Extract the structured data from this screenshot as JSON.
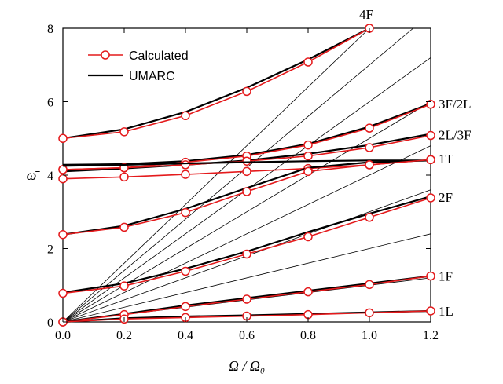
{
  "chart_data": {
    "type": "line",
    "title": "",
    "xlabel": "Ω / Ω₀",
    "ylabel": "ω̄",
    "xlim": [
      0,
      1.2
    ],
    "ylim": [
      0,
      8
    ],
    "xticks": [
      "0.0",
      "0.2",
      "0.4",
      "0.6",
      "0.8",
      "1.0",
      "1.2"
    ],
    "yticks": [
      "0",
      "2",
      "4",
      "6",
      "8"
    ],
    "grid": false,
    "legend_position": "top-left",
    "legend": [
      {
        "label": "Calculated",
        "color": "#e41a1c",
        "style": "line-circle"
      },
      {
        "label": "UMARC",
        "color": "#000000",
        "style": "line"
      }
    ],
    "mode_labels": [
      {
        "text": "4F",
        "x": 1.0,
        "y": 8.0
      },
      {
        "text": "3F/2L",
        "x": 1.2,
        "y": 5.95
      },
      {
        "text": "2L/3F",
        "x": 1.2,
        "y": 5.1
      },
      {
        "text": "1T",
        "x": 1.2,
        "y": 4.45
      },
      {
        "text": "2F",
        "x": 1.2,
        "y": 3.4
      },
      {
        "text": "1F",
        "x": 1.2,
        "y": 1.25
      },
      {
        "text": "1L",
        "x": 1.2,
        "y": 0.3
      }
    ],
    "rotor_speed_lines": {
      "slopes": [
        1,
        2,
        3,
        4,
        5,
        6,
        7,
        8
      ],
      "note_x_range": [
        0,
        1.2
      ]
    },
    "series": [
      {
        "name": "4F",
        "x": [
          0,
          0.2,
          0.4,
          0.6,
          0.8,
          1.0
        ],
        "calculated": [
          5.0,
          5.18,
          5.62,
          6.28,
          7.08,
          8.0
        ],
        "umarc": [
          5.0,
          5.25,
          5.72,
          6.38,
          7.15,
          8.0
        ]
      },
      {
        "name": "3F/2L",
        "x": [
          0,
          0.2,
          0.4,
          0.6,
          0.8,
          1.0,
          1.2
        ],
        "calculated": [
          4.15,
          4.2,
          4.35,
          4.52,
          4.82,
          5.28,
          5.93
        ],
        "umarc": [
          4.28,
          4.3,
          4.38,
          4.55,
          4.85,
          5.32,
          5.95
        ]
      },
      {
        "name": "2L/3F",
        "x": [
          0,
          0.2,
          0.4,
          0.6,
          0.8,
          1.0,
          1.2
        ],
        "calculated": [
          4.15,
          4.2,
          4.28,
          4.38,
          4.52,
          4.75,
          5.08
        ],
        "umarc": [
          4.1,
          4.18,
          4.28,
          4.4,
          4.58,
          4.82,
          5.12
        ]
      },
      {
        "name": "1T",
        "x": [
          0,
          0.2,
          0.4,
          0.6,
          0.8,
          1.0,
          1.2
        ],
        "calculated": [
          3.9,
          3.95,
          4.02,
          4.1,
          4.18,
          4.28,
          4.42
        ],
        "umarc": [
          4.25,
          4.28,
          4.32,
          4.35,
          4.38,
          4.4,
          4.4
        ]
      },
      {
        "name": "2F",
        "x": [
          0,
          0.2,
          0.4,
          0.6,
          0.8,
          1.0,
          1.2
        ],
        "calculated": [
          2.38,
          2.58,
          2.98,
          3.55,
          4.1,
          4.28,
          4.42
        ],
        "umarc": [
          2.38,
          2.62,
          3.08,
          3.65,
          4.2,
          4.35,
          4.4
        ]
      },
      {
        "name": "2F-upper",
        "x": [
          0,
          0.2,
          0.4,
          0.6,
          0.8,
          1.0,
          1.2
        ],
        "calculated": [
          0.78,
          0.98,
          1.38,
          1.85,
          2.32,
          2.85,
          3.38
        ],
        "umarc": [
          0.8,
          1.05,
          1.45,
          1.92,
          2.45,
          2.95,
          3.42
        ]
      },
      {
        "name": "1F",
        "x": [
          0,
          0.2,
          0.4,
          0.6,
          0.8,
          1.0,
          1.2
        ],
        "calculated": [
          0.0,
          0.2,
          0.42,
          0.62,
          0.82,
          1.02,
          1.25
        ],
        "umarc": [
          0.0,
          0.22,
          0.45,
          0.65,
          0.85,
          1.05,
          1.25
        ]
      },
      {
        "name": "1L",
        "x": [
          0,
          0.2,
          0.4,
          0.6,
          0.8,
          1.0,
          1.2
        ],
        "calculated": [
          0.0,
          0.08,
          0.12,
          0.16,
          0.2,
          0.25,
          0.3
        ],
        "umarc": [
          0.0,
          0.1,
          0.15,
          0.18,
          0.22,
          0.26,
          0.3
        ]
      }
    ]
  }
}
